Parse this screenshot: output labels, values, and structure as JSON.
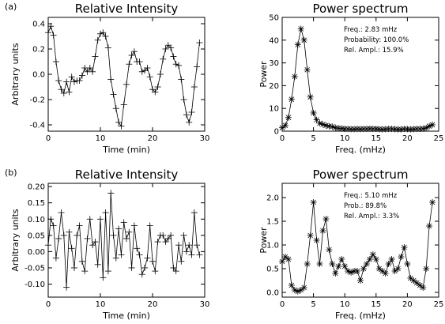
{
  "chart_data": [
    {
      "panel_id": "a",
      "panel_label": "(a)",
      "type": "line",
      "marker": "plus",
      "title": "Relative Intensity",
      "xlabel": "Time (min)",
      "ylabel": "Arbitrary units",
      "xlim": [
        0,
        30
      ],
      "ylim": [
        -0.45,
        0.45
      ],
      "xticks": [
        0,
        10,
        20,
        30
      ],
      "xtick_labels": [
        "0",
        "10",
        "20",
        "30"
      ],
      "yticks": [
        -0.4,
        -0.2,
        0.0,
        0.2,
        0.4
      ],
      "ytick_labels": [
        "-0.4",
        "-0.2",
        "0.0",
        "0.2",
        "0.4"
      ],
      "annotations": [],
      "series": [
        {
          "x": [
            0.0,
            0.5,
            1.0,
            1.5,
            2.0,
            2.5,
            3.0,
            3.5,
            4.0,
            4.5,
            5.0,
            5.5,
            6.0,
            6.5,
            7.0,
            7.5,
            8.0,
            8.5,
            9.0,
            9.5,
            10.0,
            10.5,
            11.0,
            11.5,
            12.0,
            12.5,
            13.0,
            13.5,
            14.0,
            14.5,
            15.0,
            15.5,
            16.0,
            16.5,
            17.0,
            17.5,
            18.0,
            18.5,
            19.0,
            19.5,
            20.0,
            20.5,
            21.0,
            21.5,
            22.0,
            22.5,
            23.0,
            23.5,
            24.0,
            24.5,
            25.0,
            25.5,
            26.0,
            26.5,
            27.0,
            27.5,
            28.0,
            28.5,
            29.0
          ],
          "y": [
            0.33,
            0.38,
            0.31,
            0.1,
            -0.05,
            -0.12,
            -0.15,
            -0.06,
            -0.14,
            -0.02,
            -0.06,
            -0.05,
            -0.05,
            -0.01,
            0.05,
            0.02,
            0.05,
            0.02,
            0.14,
            0.27,
            0.32,
            0.33,
            0.3,
            0.21,
            -0.04,
            -0.16,
            -0.27,
            -0.38,
            -0.41,
            -0.24,
            -0.08,
            0.08,
            0.15,
            0.18,
            0.1,
            0.1,
            0.02,
            0.03,
            0.05,
            -0.02,
            -0.12,
            -0.14,
            -0.1,
            0.0,
            0.12,
            0.2,
            0.23,
            0.21,
            0.14,
            0.08,
            0.07,
            -0.04,
            -0.2,
            -0.32,
            -0.38,
            -0.3,
            -0.1,
            0.06,
            0.25
          ]
        }
      ]
    },
    {
      "panel_id": "a",
      "type": "line",
      "marker": "star",
      "title": "Power spectrum",
      "xlabel": "Freq. (mHz)",
      "ylabel": "Power",
      "xlim": [
        0,
        25
      ],
      "ylim": [
        0,
        50
      ],
      "xticks": [
        0,
        5,
        10,
        15,
        20,
        25
      ],
      "xtick_labels": [
        "0",
        "5",
        "10",
        "15",
        "20",
        "25"
      ],
      "yticks": [
        0,
        10,
        20,
        30,
        40,
        50
      ],
      "ytick_labels": [
        "0",
        "10",
        "20",
        "30",
        "40",
        "50"
      ],
      "annotations": [
        "Freq.: 2.83 mHz",
        "Probability: 100.0%",
        "Rel. Ampl.: 15.9%"
      ],
      "series": [
        {
          "x": [
            0.0,
            0.5,
            1.0,
            1.5,
            2.0,
            2.5,
            3.0,
            3.5,
            4.0,
            4.5,
            5.0,
            5.5,
            6.0,
            6.5,
            7.0,
            7.5,
            8.0,
            8.5,
            9.0,
            9.5,
            10.0,
            10.5,
            11.0,
            11.5,
            12.0,
            12.5,
            13.0,
            13.5,
            14.0,
            14.5,
            15.0,
            15.5,
            16.0,
            16.5,
            17.0,
            17.5,
            18.0,
            18.5,
            19.0,
            19.5,
            20.0,
            20.5,
            21.0,
            21.5,
            22.0,
            22.5,
            23.0,
            23.5,
            24.0
          ],
          "y": [
            1.5,
            2.5,
            6,
            14,
            24,
            38,
            45,
            40,
            27,
            15,
            8,
            5,
            3.5,
            3,
            2.5,
            2.2,
            2,
            1.5,
            1.3,
            1.2,
            1,
            1,
            0.9,
            0.9,
            1,
            0.9,
            1,
            1,
            1.1,
            1,
            1,
            0.9,
            0.8,
            0.9,
            1,
            1,
            0.9,
            0.8,
            0.8,
            1,
            0.9,
            0.8,
            0.9,
            1,
            1,
            1.1,
            1.4,
            2.2,
            2.8
          ]
        }
      ]
    },
    {
      "panel_id": "b",
      "panel_label": "(b)",
      "type": "line",
      "marker": "plus",
      "title": "Relative Intensity",
      "xlabel": "Time (min)",
      "ylabel": "Arbitrary units",
      "xlim": [
        0,
        30
      ],
      "ylim": [
        -0.14,
        0.21
      ],
      "xticks": [
        0,
        10,
        20,
        30
      ],
      "xtick_labels": [
        "0",
        "10",
        "20",
        "30"
      ],
      "yticks": [
        -0.1,
        -0.05,
        0.0,
        0.05,
        0.1,
        0.15,
        0.2
      ],
      "ytick_labels": [
        "-0.10",
        "-0.05",
        "0.00",
        "0.05",
        "0.10",
        "0.15",
        "0.20"
      ],
      "annotations": [],
      "series": [
        {
          "x": [
            0.0,
            0.5,
            1.0,
            1.5,
            2.0,
            2.5,
            3.0,
            3.5,
            4.0,
            4.5,
            5.0,
            5.5,
            6.0,
            6.5,
            7.0,
            7.5,
            8.0,
            8.5,
            9.0,
            9.5,
            10.0,
            10.5,
            11.0,
            11.5,
            12.0,
            12.5,
            13.0,
            13.5,
            14.0,
            14.5,
            15.0,
            15.5,
            16.0,
            16.5,
            17.0,
            17.5,
            18.0,
            18.5,
            19.0,
            19.5,
            20.0,
            20.5,
            21.0,
            21.5,
            22.0,
            22.5,
            23.0,
            23.5,
            24.0,
            24.5,
            25.0,
            25.5,
            26.0,
            26.5,
            27.0,
            27.5,
            28.0,
            28.5,
            29.0
          ],
          "y": [
            0.02,
            0.1,
            0.08,
            -0.02,
            0.04,
            0.12,
            0.05,
            -0.11,
            0.06,
            0.01,
            -0.05,
            0.05,
            0.08,
            -0.03,
            -0.06,
            0.04,
            0.1,
            0.02,
            0.03,
            -0.04,
            0.1,
            -0.08,
            0.12,
            -0.06,
            0.18,
            0.05,
            -0.02,
            0.07,
            -0.01,
            0.09,
            0.04,
            0.06,
            -0.05,
            0.08,
            0.01,
            -0.01,
            -0.07,
            -0.05,
            -0.02,
            0.08,
            -0.03,
            -0.06,
            0.03,
            0.05,
            0.05,
            0.03,
            0.04,
            0.05,
            -0.05,
            -0.06,
            0.02,
            -0.03,
            0.05,
            0.0,
            0.02,
            -0.01,
            0.12,
            0.02,
            -0.01
          ]
        }
      ]
    },
    {
      "panel_id": "b",
      "type": "line",
      "marker": "star",
      "title": "Power spectrum",
      "xlabel": "Freq. (mHz)",
      "ylabel": "Power",
      "xlim": [
        0,
        25
      ],
      "ylim": [
        -0.1,
        2.3
      ],
      "xticks": [
        0,
        5,
        10,
        15,
        20,
        25
      ],
      "xtick_labels": [
        "0",
        "5",
        "10",
        "15",
        "20",
        "25"
      ],
      "yticks": [
        0.0,
        0.5,
        1.0,
        1.5,
        2.0
      ],
      "ytick_labels": [
        "0.0",
        "0.5",
        "1.0",
        "1.5",
        "2.0"
      ],
      "annotations": [
        "Freq.: 5.10 mHz",
        "Prob.: 89.8%",
        "Rel. Ampl.: 3.3%"
      ],
      "series": [
        {
          "x": [
            0.0,
            0.5,
            1.0,
            1.5,
            2.0,
            2.5,
            3.0,
            3.5,
            4.0,
            4.5,
            5.0,
            5.5,
            6.0,
            6.5,
            7.0,
            7.5,
            8.0,
            8.5,
            9.0,
            9.5,
            10.0,
            10.5,
            11.0,
            11.5,
            12.0,
            12.5,
            13.0,
            13.5,
            14.0,
            14.5,
            15.0,
            15.5,
            16.0,
            16.5,
            17.0,
            17.5,
            18.0,
            18.5,
            19.0,
            19.5,
            20.0,
            20.5,
            21.0,
            21.5,
            22.0,
            22.5,
            23.0,
            23.5,
            24.0
          ],
          "y": [
            0.65,
            0.75,
            0.7,
            0.15,
            0.05,
            0.02,
            0.05,
            0.1,
            0.6,
            1.2,
            1.9,
            1.1,
            0.6,
            1.3,
            1.55,
            0.9,
            0.6,
            0.4,
            0.55,
            0.7,
            0.55,
            0.45,
            0.42,
            0.45,
            0.45,
            0.25,
            0.5,
            0.6,
            0.7,
            0.8,
            0.7,
            0.5,
            0.45,
            0.4,
            0.6,
            0.7,
            0.45,
            0.5,
            0.75,
            0.95,
            0.6,
            0.3,
            0.25,
            0.2,
            0.15,
            0.1,
            0.5,
            1.4,
            1.9
          ]
        }
      ]
    }
  ]
}
